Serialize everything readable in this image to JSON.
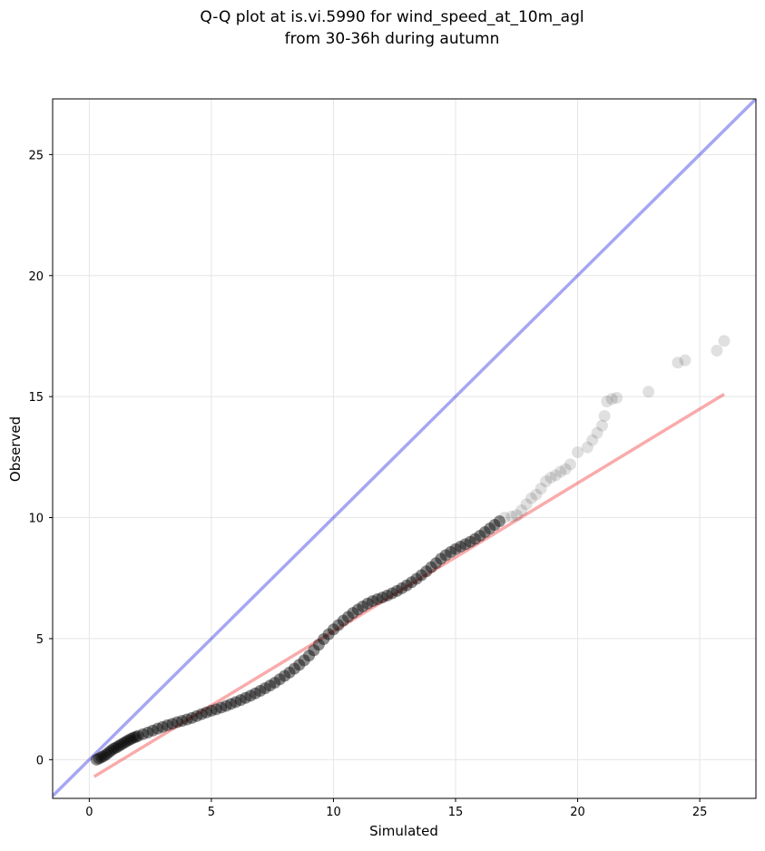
{
  "chart_data": {
    "type": "scatter",
    "title_line1": "Q-Q plot at is.vi.5990 for wind_speed_at_10m_agl",
    "title_line2": "from 30-36h during autumn",
    "xlabel": "Simulated",
    "ylabel": "Observed",
    "xlim": [
      -1.5,
      27.3
    ],
    "ylim": [
      -1.6,
      27.3
    ],
    "xticks": [
      0,
      5,
      10,
      15,
      20,
      25
    ],
    "yticks": [
      0,
      5,
      10,
      15,
      20,
      25
    ],
    "grid": true,
    "identity_line": {
      "color": "#0000dd",
      "from": [
        -1.5,
        -1.5
      ],
      "to": [
        27.3,
        27.3
      ]
    },
    "fit_line": {
      "color": "#ee2222",
      "from": [
        0.2,
        -0.7
      ],
      "to": [
        26.0,
        15.1
      ]
    },
    "points": {
      "color": "#000000",
      "xy": [
        [
          0.3,
          0.0
        ],
        [
          0.4,
          0.05
        ],
        [
          0.5,
          0.1
        ],
        [
          0.6,
          0.15
        ],
        [
          0.7,
          0.22
        ],
        [
          0.8,
          0.3
        ],
        [
          0.9,
          0.38
        ],
        [
          1.0,
          0.45
        ],
        [
          1.1,
          0.5
        ],
        [
          1.2,
          0.56
        ],
        [
          1.3,
          0.62
        ],
        [
          1.4,
          0.68
        ],
        [
          1.5,
          0.74
        ],
        [
          1.6,
          0.8
        ],
        [
          1.7,
          0.85
        ],
        [
          1.8,
          0.9
        ],
        [
          1.9,
          0.94
        ],
        [
          2.0,
          0.98
        ],
        [
          2.2,
          1.05
        ],
        [
          2.4,
          1.12
        ],
        [
          2.6,
          1.2
        ],
        [
          2.8,
          1.28
        ],
        [
          3.0,
          1.35
        ],
        [
          3.2,
          1.42
        ],
        [
          3.4,
          1.48
        ],
        [
          3.6,
          1.55
        ],
        [
          3.8,
          1.6
        ],
        [
          4.0,
          1.66
        ],
        [
          4.2,
          1.72
        ],
        [
          4.4,
          1.8
        ],
        [
          4.6,
          1.88
        ],
        [
          4.8,
          1.95
        ],
        [
          5.0,
          2.02
        ],
        [
          5.2,
          2.08
        ],
        [
          5.4,
          2.15
        ],
        [
          5.6,
          2.22
        ],
        [
          5.8,
          2.3
        ],
        [
          6.0,
          2.38
        ],
        [
          6.2,
          2.46
        ],
        [
          6.4,
          2.55
        ],
        [
          6.6,
          2.64
        ],
        [
          6.8,
          2.74
        ],
        [
          7.0,
          2.84
        ],
        [
          7.2,
          2.95
        ],
        [
          7.4,
          3.06
        ],
        [
          7.6,
          3.18
        ],
        [
          7.8,
          3.32
        ],
        [
          8.0,
          3.46
        ],
        [
          8.2,
          3.6
        ],
        [
          8.4,
          3.76
        ],
        [
          8.6,
          3.92
        ],
        [
          8.8,
          4.1
        ],
        [
          9.0,
          4.3
        ],
        [
          9.2,
          4.52
        ],
        [
          9.4,
          4.75
        ],
        [
          9.6,
          4.98
        ],
        [
          9.8,
          5.18
        ],
        [
          10.0,
          5.38
        ],
        [
          10.2,
          5.56
        ],
        [
          10.4,
          5.74
        ],
        [
          10.6,
          5.9
        ],
        [
          10.8,
          6.06
        ],
        [
          11.0,
          6.2
        ],
        [
          11.2,
          6.33
        ],
        [
          11.4,
          6.45
        ],
        [
          11.6,
          6.55
        ],
        [
          11.8,
          6.63
        ],
        [
          12.0,
          6.7
        ],
        [
          12.2,
          6.78
        ],
        [
          12.4,
          6.87
        ],
        [
          12.6,
          6.97
        ],
        [
          12.8,
          7.08
        ],
        [
          13.0,
          7.2
        ],
        [
          13.2,
          7.33
        ],
        [
          13.4,
          7.47
        ],
        [
          13.6,
          7.62
        ],
        [
          13.8,
          7.78
        ],
        [
          14.0,
          7.95
        ],
        [
          14.2,
          8.12
        ],
        [
          14.4,
          8.3
        ],
        [
          14.6,
          8.45
        ],
        [
          14.8,
          8.58
        ],
        [
          15.0,
          8.7
        ],
        [
          15.2,
          8.8
        ],
        [
          15.4,
          8.9
        ],
        [
          15.6,
          9.0
        ],
        [
          15.8,
          9.12
        ],
        [
          16.0,
          9.25
        ],
        [
          16.2,
          9.4
        ],
        [
          16.4,
          9.55
        ],
        [
          16.6,
          9.7
        ],
        [
          16.8,
          9.85
        ],
        [
          17.0,
          10.0
        ],
        [
          17.3,
          10.05
        ],
        [
          17.5,
          10.1
        ],
        [
          17.7,
          10.3
        ],
        [
          17.9,
          10.55
        ],
        [
          18.1,
          10.8
        ],
        [
          18.3,
          10.95
        ],
        [
          18.5,
          11.2
        ],
        [
          18.7,
          11.5
        ],
        [
          18.9,
          11.65
        ],
        [
          19.1,
          11.75
        ],
        [
          19.3,
          11.9
        ],
        [
          19.5,
          12.0
        ],
        [
          19.7,
          12.2
        ],
        [
          20.0,
          12.7
        ],
        [
          20.4,
          12.9
        ],
        [
          20.6,
          13.2
        ],
        [
          20.8,
          13.5
        ],
        [
          21.0,
          13.8
        ],
        [
          21.1,
          14.2
        ],
        [
          21.2,
          14.8
        ],
        [
          21.4,
          14.9
        ],
        [
          21.6,
          14.95
        ],
        [
          22.9,
          15.2
        ],
        [
          24.1,
          16.4
        ],
        [
          24.4,
          16.5
        ],
        [
          25.7,
          16.9
        ],
        [
          26.0,
          17.3
        ]
      ]
    }
  }
}
